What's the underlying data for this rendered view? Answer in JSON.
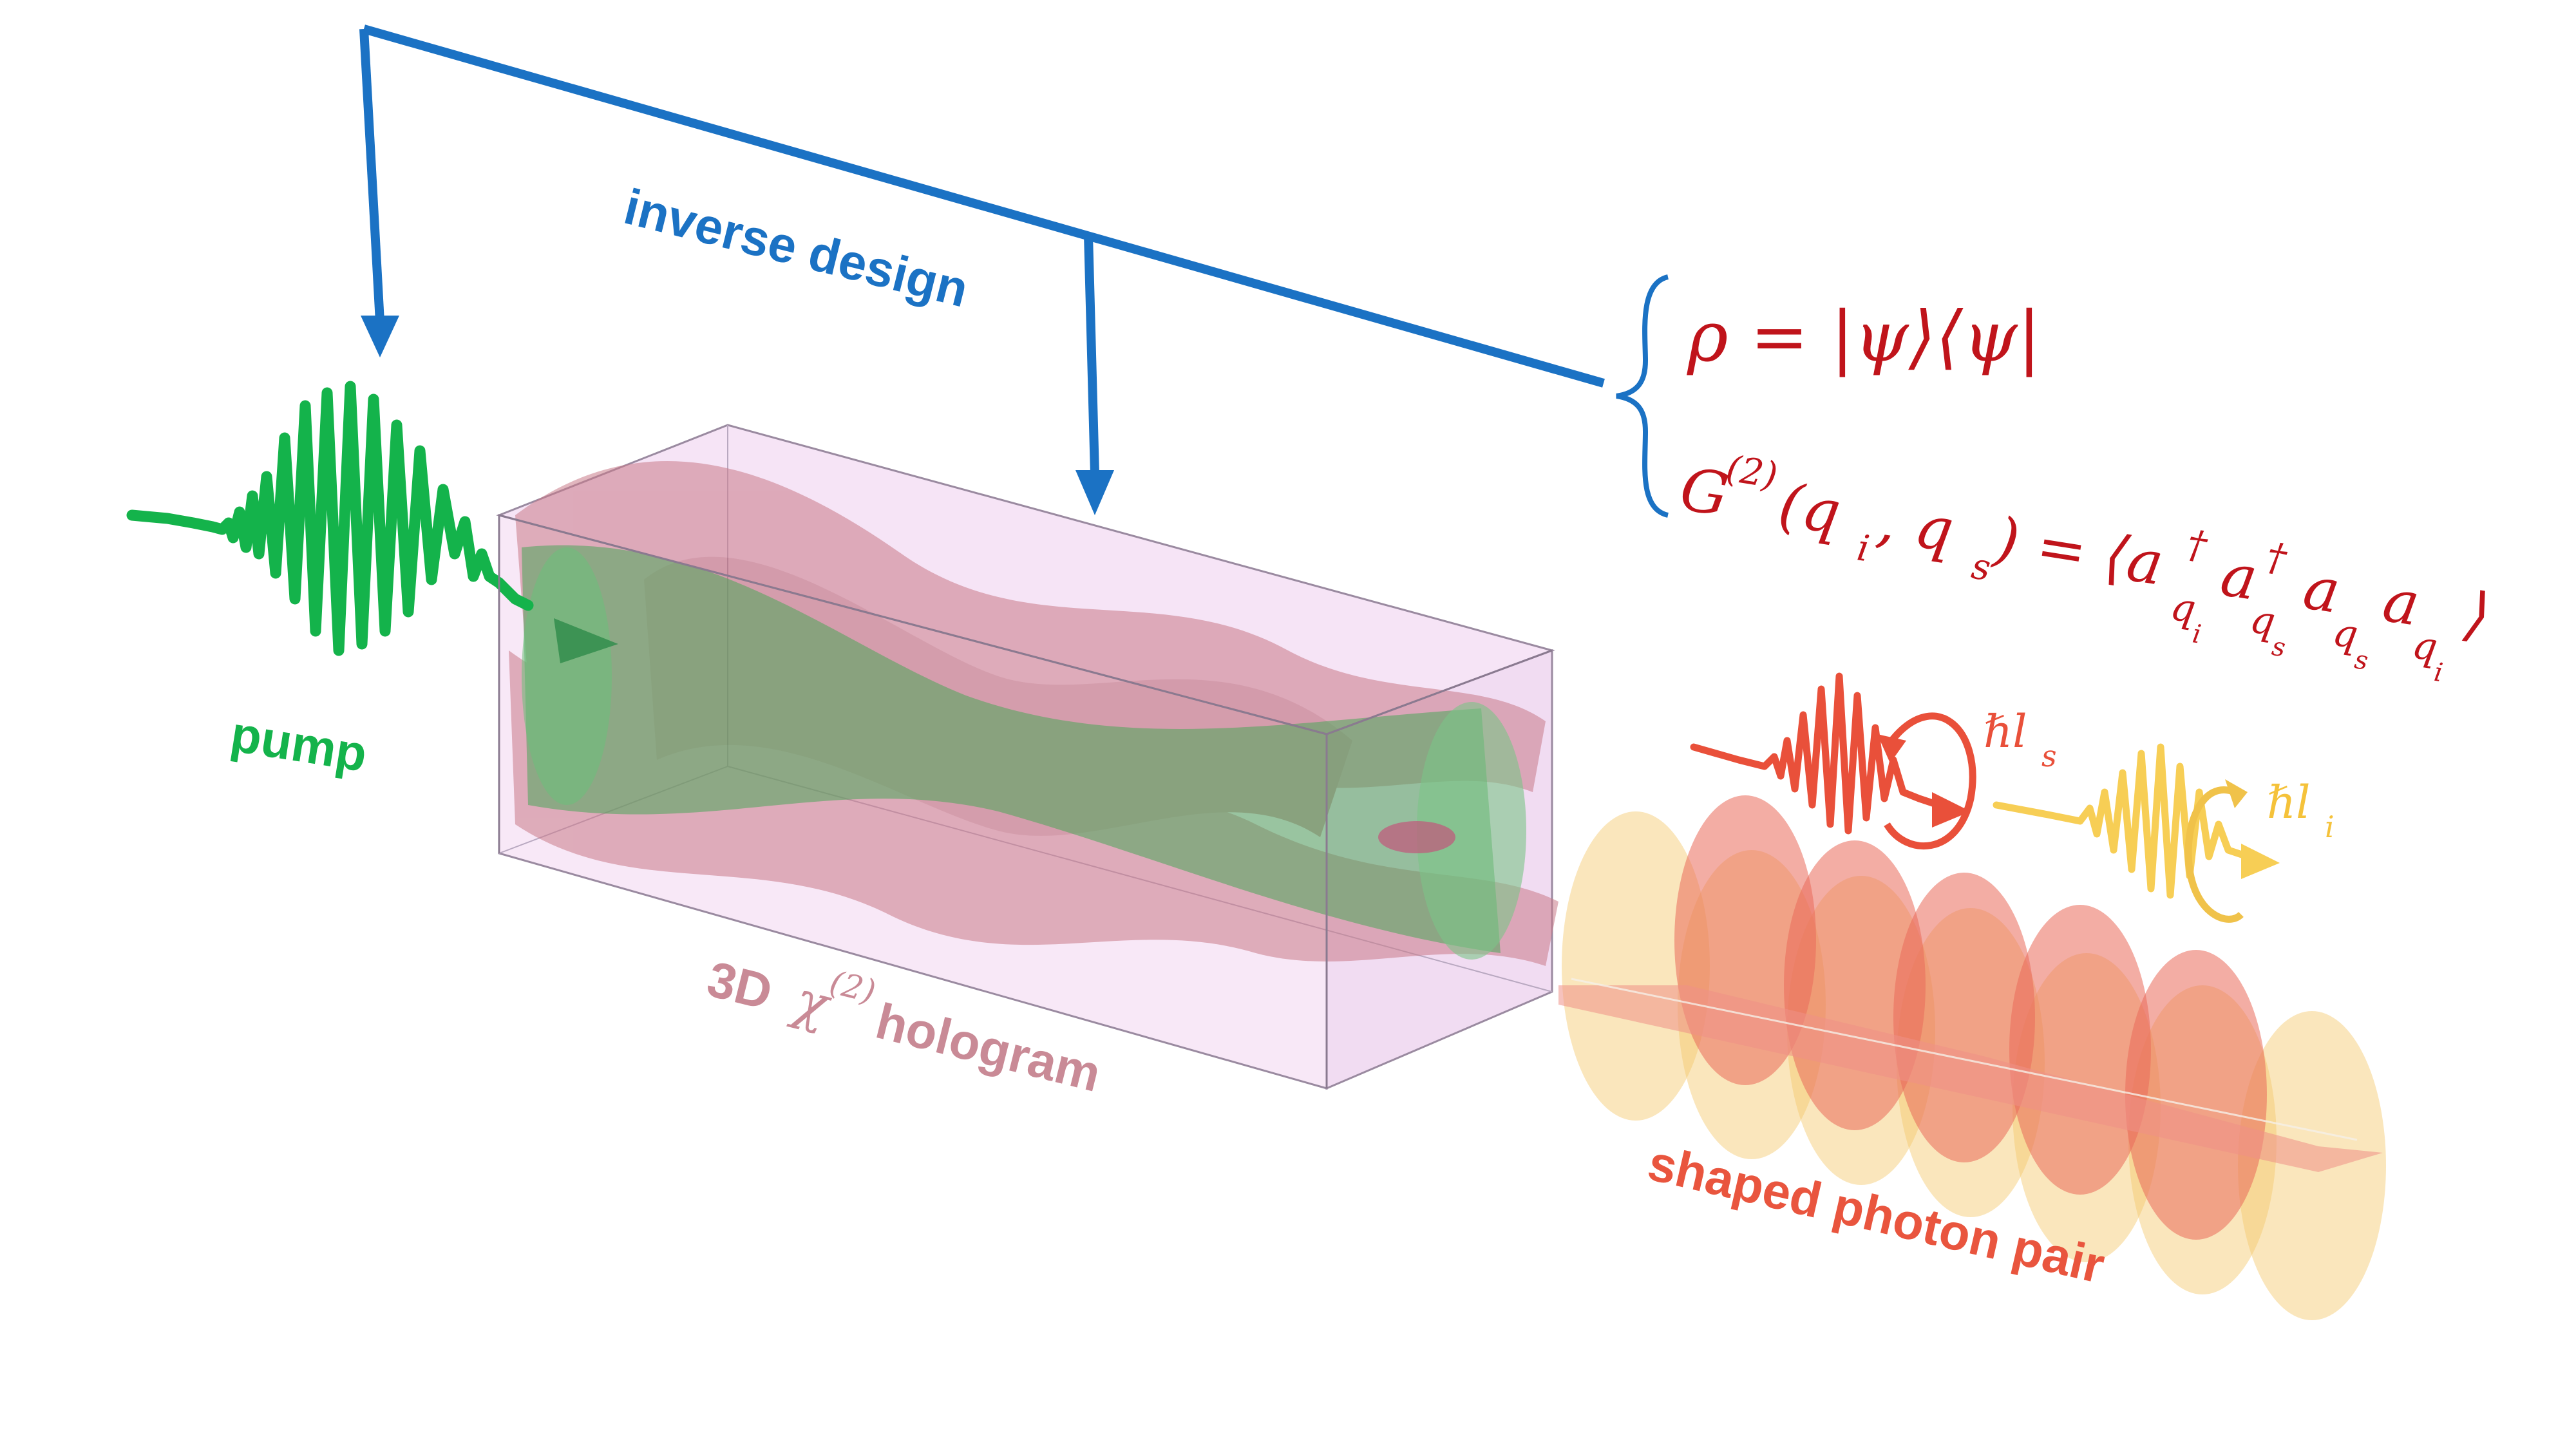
{
  "labels": {
    "inverse_design": "inverse design",
    "pump": "pump",
    "hologram_prefix": "3D",
    "hologram_chi": "χ",
    "hologram_order": "(2)",
    "hologram_suffix": "hologram",
    "photon_pair": "shaped photon pair",
    "hbar_ls": "ℏl",
    "hbar_ls_sub": "s",
    "hbar_li": "ℏl",
    "hbar_li_sub": "i"
  },
  "equations": {
    "density": "ρ = |ψ⟩⟨ψ|",
    "g2_lhs": "G",
    "g2_order": "(2)",
    "g2_args_open": "(q",
    "g2_i": "i",
    "g2_comma": ", q",
    "g2_s": "s",
    "g2_close": ") = ⟨a",
    "dagger": "†",
    "q": "q",
    "a": "a",
    "close_bracket": "⟩"
  },
  "colors": {
    "arrow_blue": "#1B72C4",
    "pump_green": "#14B34B",
    "hologram_label": "#C98A96",
    "equation_red": "#C0141B",
    "signal_red": "#E9503A",
    "idler_yellow": "#F5C23A",
    "photon_label": "#E9553E",
    "crystal_fill": "#F4DDF4"
  }
}
